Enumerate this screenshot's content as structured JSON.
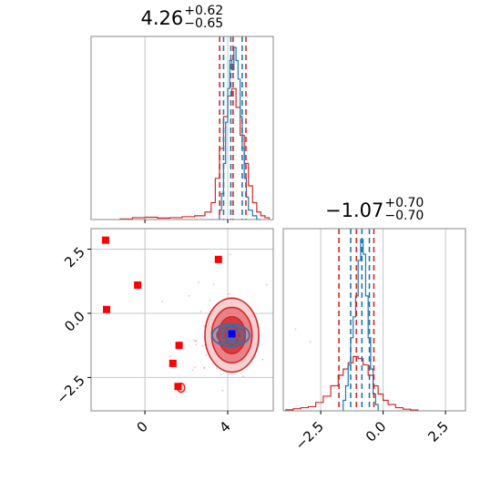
{
  "colors": {
    "red": "#d62728",
    "blue": "#1f77b4",
    "marker_red": "#ff0000",
    "marker_blue": "#0000ff",
    "grid": "#c8c8c8",
    "axis": "#888888",
    "fill_dark": "#d83a3e",
    "fill_mid": "#e88286",
    "fill_light": "#f6cfd1"
  },
  "chart_data": [
    {
      "type": "histogram",
      "panel": "param1-marginal",
      "title_value": "4.26",
      "title_plus": "+0.62",
      "title_minus": "−0.65",
      "xlim": [
        -2.6,
        6.2
      ],
      "grid": true,
      "tick_labels_shown": false,
      "quantiles_red": [
        3.61,
        4.26,
        4.88
      ],
      "quantiles_blue": [
        3.8,
        4.15,
        4.7
      ],
      "series": [
        {
          "color": "blue",
          "bin_edges": [
            3.6,
            3.7,
            3.8,
            3.9,
            4.0,
            4.1,
            4.2,
            4.3,
            4.4,
            4.5,
            4.6,
            4.7,
            4.8,
            4.9,
            5.0,
            5.2,
            5.4,
            5.6
          ],
          "counts": [
            0.05,
            0.14,
            0.3,
            0.52,
            0.7,
            0.85,
            0.8,
            0.92,
            0.85,
            0.75,
            0.55,
            0.38,
            0.22,
            0.12,
            0.05,
            0.02,
            0.0
          ]
        },
        {
          "color": "red",
          "bin_edges": [
            -1.2,
            -0.6,
            0.0,
            0.6,
            1.2,
            1.8,
            2.4,
            2.9,
            3.2,
            3.4,
            3.6,
            3.8,
            4.0,
            4.2,
            4.4,
            4.6,
            4.8,
            5.0,
            5.2,
            5.4,
            5.6,
            5.8,
            6.0
          ],
          "counts": [
            0.003,
            0.01,
            0.012,
            0.008,
            0.01,
            0.015,
            0.02,
            0.04,
            0.09,
            0.22,
            0.38,
            0.55,
            0.66,
            0.7,
            0.6,
            0.45,
            0.3,
            0.18,
            0.09,
            0.04,
            0.02,
            0.01
          ]
        }
      ]
    },
    {
      "type": "scatter",
      "panel": "joint",
      "xlim": [
        -2.6,
        6.2
      ],
      "ylim": [
        -3.8,
        3.3
      ],
      "xticks": [
        0,
        4
      ],
      "xtick_labels": [
        "0",
        "4"
      ],
      "yticks": [
        -2.5,
        0.0,
        2.5
      ],
      "ytick_labels": [
        "−2.5",
        "0.0",
        "2.5"
      ],
      "grid": true,
      "red_markers": [
        [
          -1.9,
          2.85
        ],
        [
          -0.35,
          1.1
        ],
        [
          -1.85,
          0.15
        ],
        [
          3.55,
          2.1
        ],
        [
          1.65,
          -1.25
        ],
        [
          1.35,
          -1.95
        ],
        [
          1.6,
          -2.85
        ]
      ],
      "blue_marker": [
        4.2,
        -0.8
      ],
      "red_contour_center": [
        4.2,
        -0.85
      ],
      "red_contour_sigma": [
        0.65,
        0.72
      ],
      "blue_contour_center": [
        4.15,
        -0.85
      ],
      "blue_contour_sigma": [
        0.45,
        0.22
      ],
      "small_red_island": [
        1.75,
        -2.9
      ]
    },
    {
      "type": "histogram",
      "panel": "param2-marginal",
      "title_value": "−1.07",
      "title_plus": "+0.70",
      "title_minus": "−0.70",
      "xlim": [
        -4.0,
        3.3
      ],
      "xticks": [
        -2.5,
        0.0,
        2.5
      ],
      "xtick_labels": [
        "−2.5",
        "0.0",
        "2.5"
      ],
      "grid": true,
      "quantiles_red": [
        -1.77,
        -1.07,
        -0.37
      ],
      "quantiles_blue": [
        -1.3,
        -0.85,
        -0.55
      ],
      "series": [
        {
          "color": "blue",
          "bin_edges": [
            -1.6,
            -1.5,
            -1.4,
            -1.3,
            -1.2,
            -1.1,
            -1.0,
            -0.9,
            -0.8,
            -0.7,
            -0.6,
            -0.5,
            -0.4,
            -0.3,
            -0.2
          ],
          "counts": [
            0.05,
            0.12,
            0.22,
            0.35,
            0.45,
            0.55,
            0.72,
            0.82,
            0.75,
            0.55,
            0.35,
            0.2,
            0.08,
            0.03
          ]
        },
        {
          "color": "red",
          "bin_edges": [
            -3.9,
            -3.6,
            -3.3,
            -3.0,
            -2.7,
            -2.4,
            -2.1,
            -1.8,
            -1.6,
            -1.4,
            -1.2,
            -1.0,
            -0.8,
            -0.6,
            -0.4,
            -0.2,
            0.0,
            0.2,
            0.5,
            0.8,
            1.1,
            1.4
          ],
          "counts": [
            0.005,
            0.01,
            0.015,
            0.02,
            0.04,
            0.07,
            0.12,
            0.17,
            0.2,
            0.23,
            0.26,
            0.25,
            0.22,
            0.17,
            0.12,
            0.08,
            0.05,
            0.03,
            0.015,
            0.008,
            0.004
          ]
        }
      ]
    }
  ]
}
